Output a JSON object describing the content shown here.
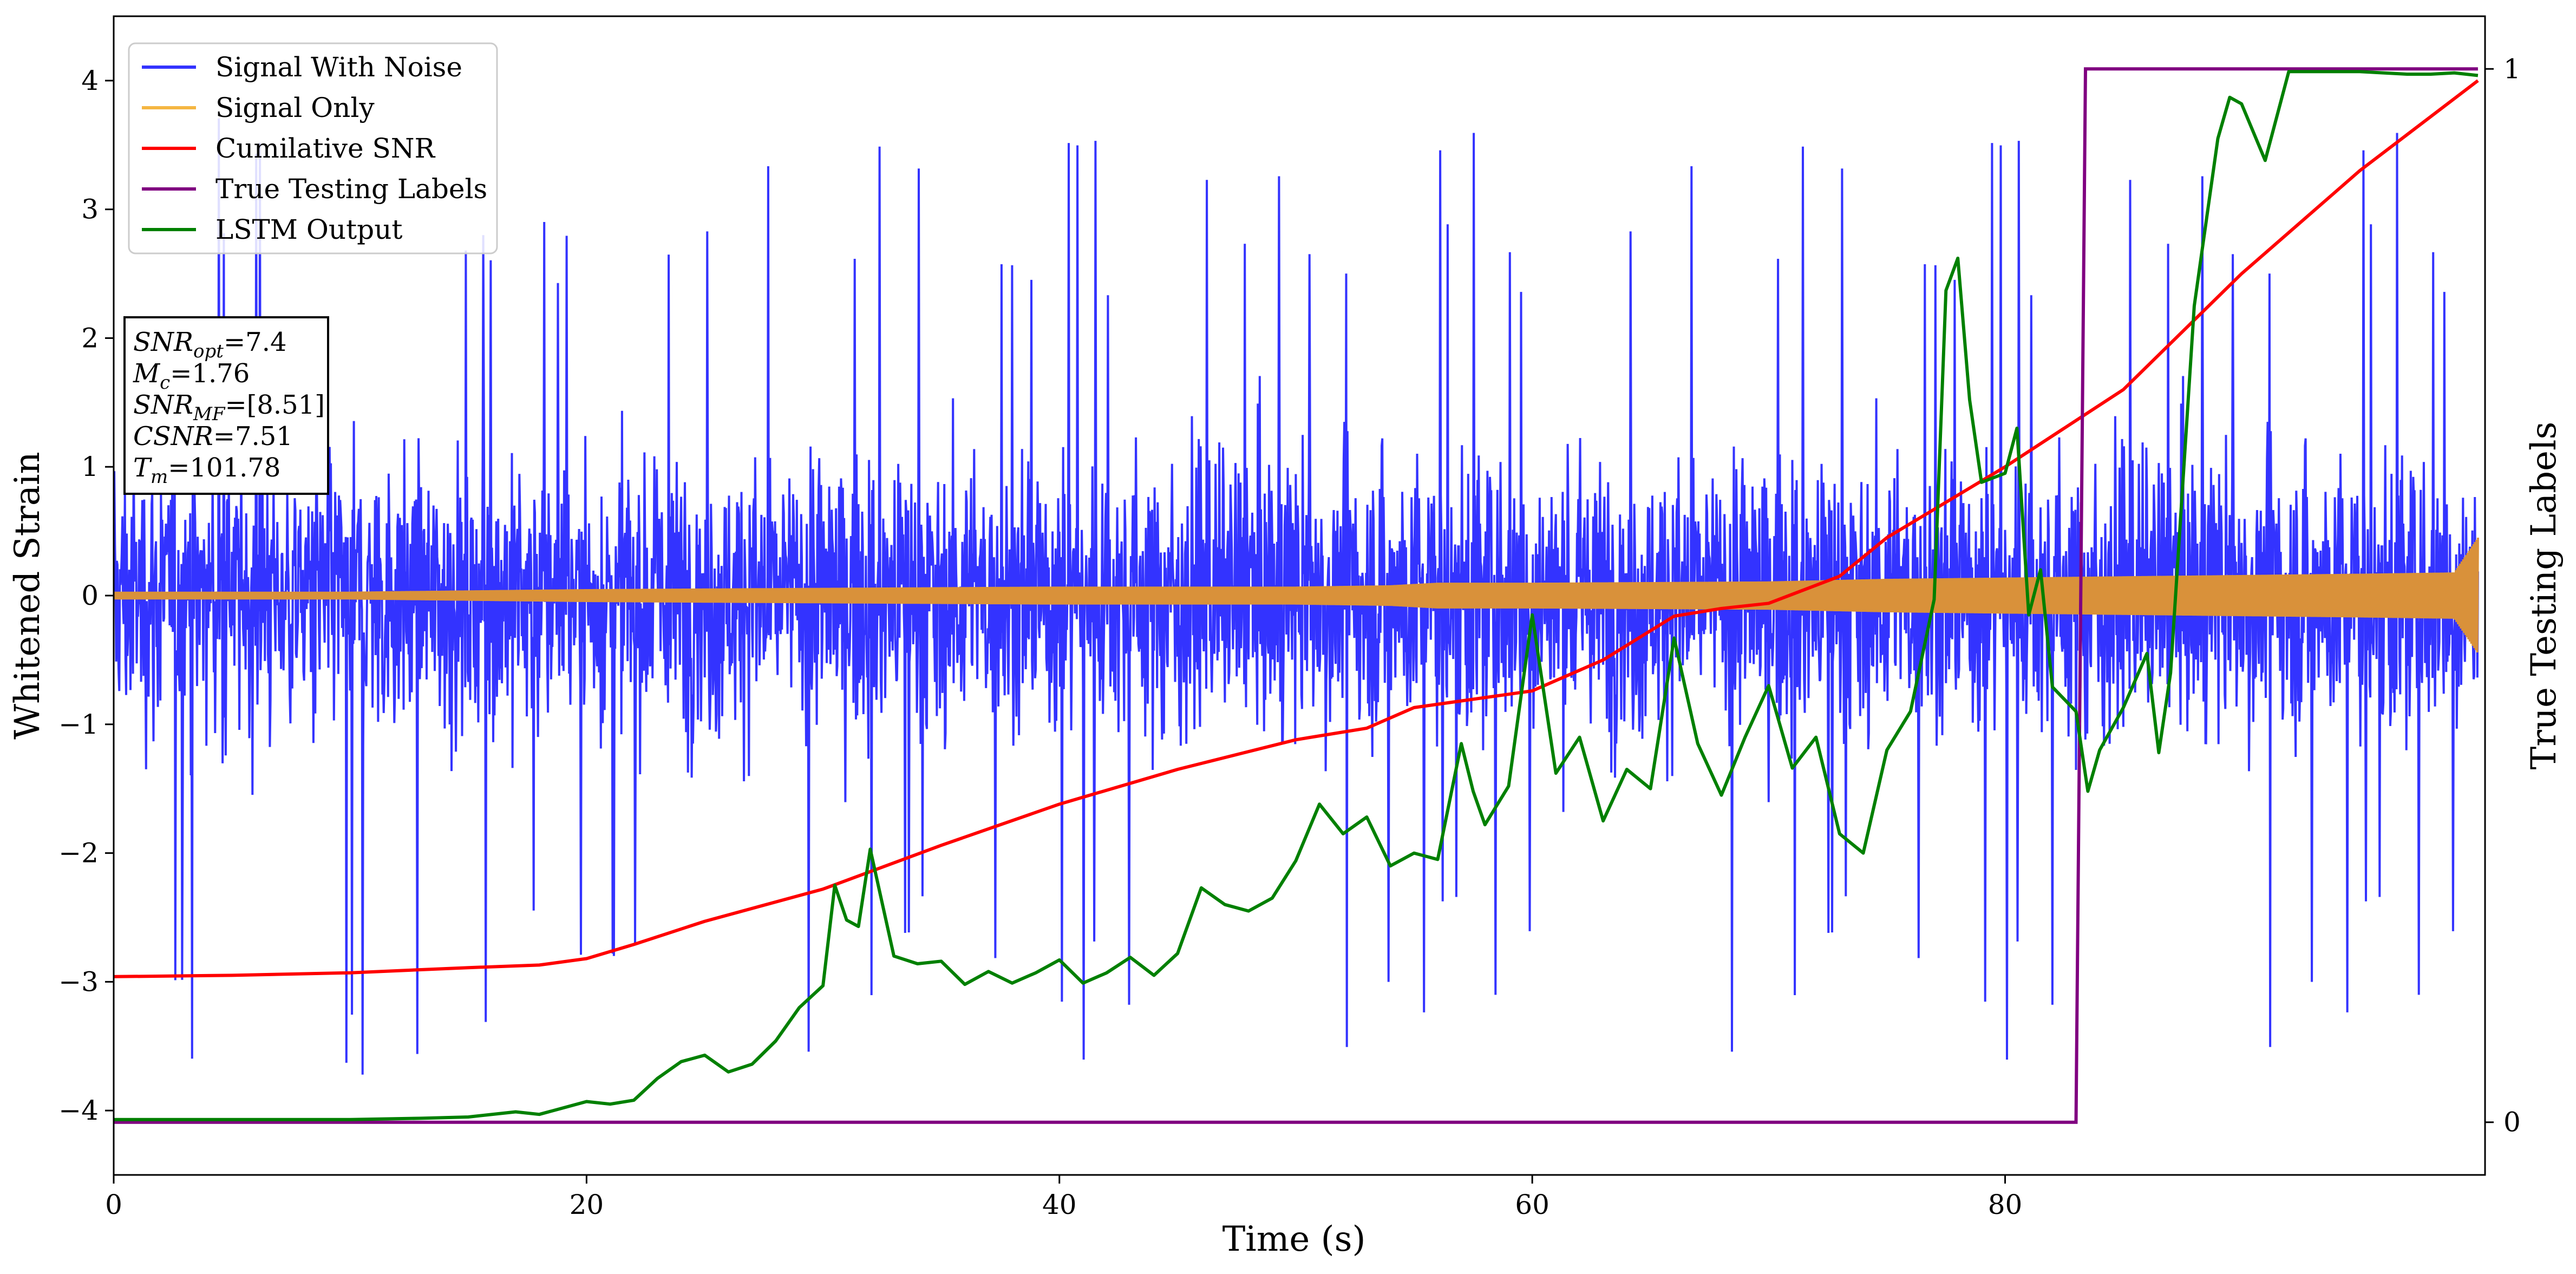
{
  "chart_data": {
    "type": "line",
    "xlabel": "Time (s)",
    "ylabel": "Whitened Strain",
    "y2label": "True Testing Labels",
    "xlim": [
      0,
      100.3
    ],
    "ylim": [
      -4.5,
      4.5
    ],
    "y2lim": [
      -0.05,
      1.05
    ],
    "xticks": [
      0,
      20,
      40,
      60,
      80
    ],
    "yticks": [
      -4,
      -3,
      -2,
      -1,
      0,
      1,
      2,
      3,
      4
    ],
    "y2ticks": [
      0,
      1
    ],
    "grid": false,
    "legend_position": "upper-left",
    "colors": {
      "signal_with_noise": "#3333ff",
      "signal_only": "#d9913a",
      "legend_signal_only": "#f5b642",
      "cumulative_snr": "#ff0000",
      "true_labels": "#800080",
      "lstm_output": "#008000"
    },
    "series": [
      {
        "name": "Signal With Noise",
        "axis": "left",
        "description_values": "noise band between about -2.5 and 2.2, spikes reaching -3.8 to 3.8",
        "values_envelope": [
          -2.5,
          2.2
        ],
        "values_peaks": [
          -3.8,
          3.8
        ]
      },
      {
        "name": "Signal Only",
        "axis": "left",
        "x": [
          0,
          10,
          20,
          30,
          40,
          50,
          54,
          56,
          60,
          70,
          75,
          80,
          85,
          90,
          95,
          99,
          100
        ],
        "amplitude": [
          0.03,
          0.03,
          0.05,
          0.06,
          0.07,
          0.07,
          0.08,
          0.1,
          0.1,
          0.11,
          0.13,
          0.14,
          0.15,
          0.16,
          0.17,
          0.18,
          0.45
        ]
      },
      {
        "name": "Cumilative SNR",
        "axis": "left",
        "x": [
          0,
          5,
          10,
          15,
          18,
          20,
          22,
          25,
          30,
          35,
          40,
          45,
          50,
          53,
          55,
          60,
          63,
          66,
          68,
          70,
          73,
          75,
          80,
          85,
          90,
          95,
          100
        ],
        "values": [
          -2.96,
          -2.95,
          -2.93,
          -2.89,
          -2.87,
          -2.82,
          -2.71,
          -2.53,
          -2.28,
          -1.94,
          -1.62,
          -1.35,
          -1.12,
          -1.03,
          -0.87,
          -0.74,
          -0.5,
          -0.16,
          -0.1,
          -0.06,
          0.15,
          0.45,
          1.0,
          1.6,
          2.5,
          3.3,
          4.0
        ]
      },
      {
        "name": "True Testing Labels",
        "axis": "right",
        "x": [
          0,
          83.0,
          83.4,
          100
        ],
        "values": [
          0,
          0,
          1,
          1
        ]
      },
      {
        "name": "LSTM Output",
        "axis": "left",
        "x": [
          0,
          10,
          13,
          15,
          17,
          18,
          19,
          20,
          21,
          22,
          23,
          24,
          25,
          26,
          27,
          28,
          29,
          30,
          30.5,
          31,
          31.5,
          32,
          33,
          34,
          35,
          36,
          37,
          38,
          39,
          40,
          41,
          42,
          43,
          44,
          45,
          46,
          47,
          48,
          49,
          50,
          51,
          52,
          53,
          54,
          55,
          56,
          57,
          57.5,
          58,
          59,
          60,
          61,
          62,
          63,
          64,
          65,
          66,
          67,
          68,
          69,
          70,
          71,
          72,
          73,
          74,
          75,
          76,
          77,
          77.5,
          78,
          78.5,
          79,
          80,
          80.5,
          81,
          81.5,
          82,
          83,
          83.5,
          84,
          85,
          86,
          86.5,
          87,
          88,
          89,
          89.5,
          90,
          91,
          92,
          93,
          94,
          95,
          96,
          97,
          98,
          99,
          100
        ],
        "values": [
          -4.07,
          -4.07,
          -4.06,
          -4.05,
          -4.01,
          -4.03,
          -3.98,
          -3.93,
          -3.95,
          -3.92,
          -3.75,
          -3.62,
          -3.57,
          -3.7,
          -3.64,
          -3.46,
          -3.2,
          -3.03,
          -2.25,
          -2.52,
          -2.57,
          -1.97,
          -2.8,
          -2.86,
          -2.84,
          -3.02,
          -2.92,
          -3.01,
          -2.93,
          -2.83,
          -3.01,
          -2.93,
          -2.81,
          -2.95,
          -2.78,
          -2.27,
          -2.4,
          -2.45,
          -2.35,
          -2.06,
          -1.62,
          -1.85,
          -1.72,
          -2.1,
          -2.0,
          -2.05,
          -1.15,
          -1.52,
          -1.78,
          -1.48,
          -0.15,
          -1.38,
          -1.1,
          -1.75,
          -1.35,
          -1.5,
          -0.33,
          -1.15,
          -1.55,
          -1.1,
          -0.7,
          -1.34,
          -1.1,
          -1.85,
          -2.0,
          -1.2,
          -0.9,
          -0.03,
          2.37,
          2.62,
          1.52,
          0.88,
          0.95,
          1.3,
          -0.15,
          0.2,
          -0.71,
          -0.9,
          -1.52,
          -1.2,
          -0.87,
          -0.45,
          -1.22,
          -0.6,
          2.25,
          3.55,
          3.87,
          3.82,
          3.38,
          4.07,
          4.07,
          4.07,
          4.07,
          4.06,
          4.05,
          4.05,
          4.06,
          4.04
        ]
      }
    ],
    "annotation_box": {
      "lines": [
        {
          "var": "SNR",
          "sub": "opt",
          "value": "=7.4"
        },
        {
          "var": "M",
          "sub": "c",
          "value": "=1.76"
        },
        {
          "var": "SNR",
          "sub": "MF",
          "value": "=[8.51]"
        },
        {
          "var": "CSNR",
          "sub": "",
          "value": "=7.51"
        },
        {
          "var": "T",
          "sub": "m",
          "value": "=101.78"
        }
      ]
    }
  }
}
